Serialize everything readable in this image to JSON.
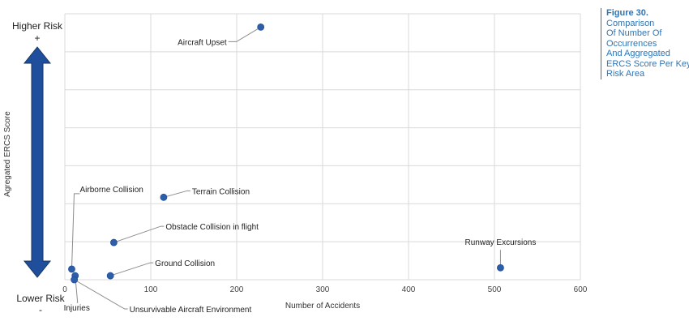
{
  "caption": {
    "figure_label": "Figure 30.",
    "lines": [
      "Comparison",
      "Of Number Of",
      "Occurrences",
      "And Aggregated",
      "ERCS Score Per Key",
      "Risk Area"
    ]
  },
  "risk_scale": {
    "top_label": "Higher Risk",
    "top_symbol": "+",
    "bottom_label": "Lower Risk",
    "bottom_symbol": "-",
    "arrow_color": "#1f4e9c"
  },
  "chart_data": {
    "type": "scatter",
    "xlabel": "Number of Accidents",
    "ylabel": "Agregated ERCS Score",
    "xlim": [
      0,
      600
    ],
    "x_ticks": [
      "0",
      "100",
      "200",
      "300",
      "400",
      "500",
      "600"
    ],
    "ylim": [
      0,
      100
    ],
    "grid": true,
    "marker_color": "#2e5ea8",
    "points": [
      {
        "label": "Aircraft Upset",
        "x": 228,
        "y": 95
      },
      {
        "label": "Terrain Collision",
        "x": 115,
        "y": 31
      },
      {
        "label": "Obstacle Collision in flight",
        "x": 57,
        "y": 14
      },
      {
        "label": "Airborne Collision",
        "x": 8,
        "y": 4
      },
      {
        "label": "Ground Collision",
        "x": 53,
        "y": 1.5
      },
      {
        "label": "Injuries",
        "x": 12,
        "y": 1.5
      },
      {
        "label": "Unsurvivable Aircraft Environment",
        "x": 11,
        "y": 0
      },
      {
        "label": "Runway Excursions",
        "x": 507,
        "y": 4.5
      }
    ]
  }
}
